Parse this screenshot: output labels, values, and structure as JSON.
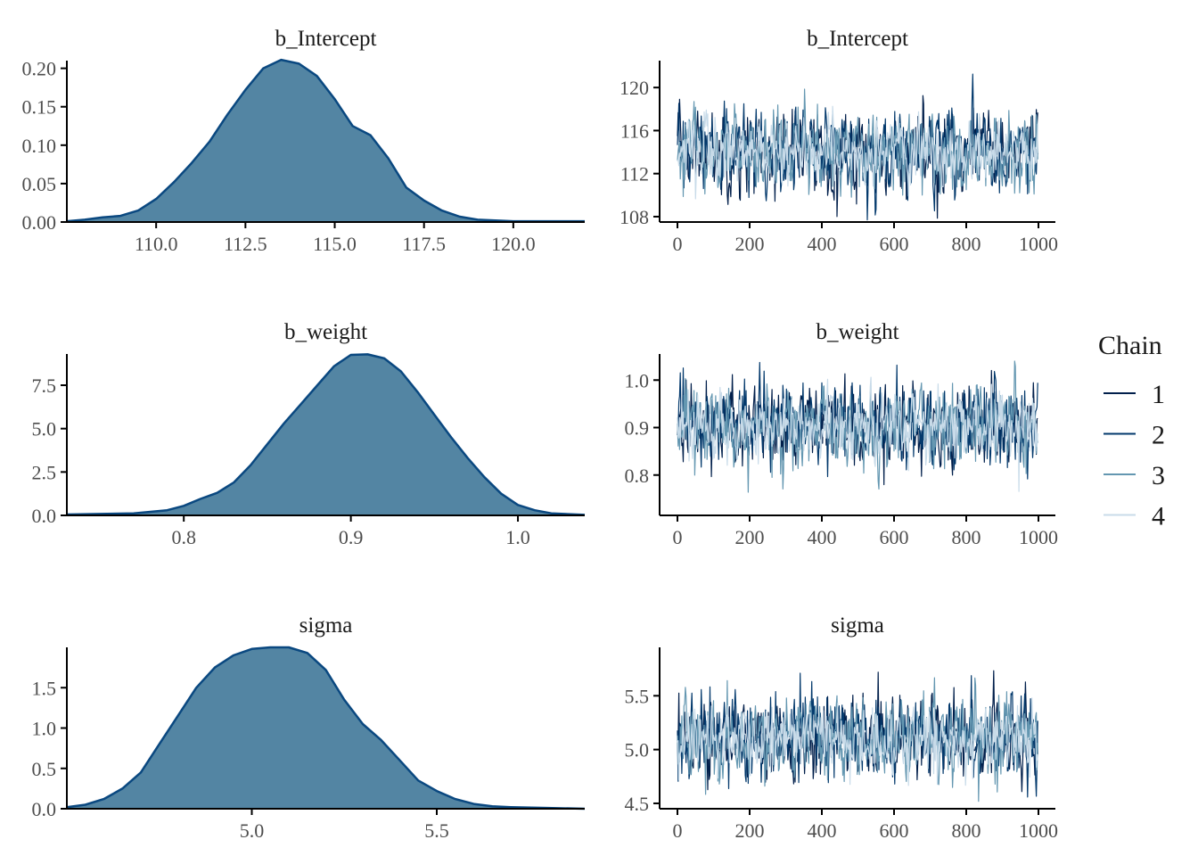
{
  "chart_data": [
    {
      "type": "area",
      "title": "b_Intercept",
      "xlim": [
        107.5,
        122.0
      ],
      "ylim": [
        0,
        0.21
      ],
      "xticks": [
        110.0,
        112.5,
        115.0,
        117.5,
        120.0
      ],
      "xtick_labels": [
        "110.0",
        "112.5",
        "115.0",
        "117.5",
        "120.0"
      ],
      "yticks": [
        0,
        0.05,
        0.1,
        0.15,
        0.2
      ],
      "ytick_labels": [
        "0.00",
        "0.05",
        "0.10",
        "0.15",
        "0.20"
      ],
      "x": [
        107.5,
        108.0,
        108.5,
        109.0,
        109.5,
        110.0,
        110.5,
        111.0,
        111.5,
        112.0,
        112.5,
        113.0,
        113.5,
        114.0,
        114.5,
        115.0,
        115.5,
        116.0,
        116.5,
        117.0,
        117.5,
        118.0,
        118.5,
        119.0,
        119.5,
        120.0,
        121.0,
        122.0
      ],
      "y": [
        0.001,
        0.003,
        0.006,
        0.008,
        0.015,
        0.03,
        0.052,
        0.077,
        0.105,
        0.14,
        0.172,
        0.2,
        0.211,
        0.206,
        0.19,
        0.16,
        0.125,
        0.113,
        0.083,
        0.045,
        0.028,
        0.015,
        0.007,
        0.003,
        0.002,
        0.001,
        0.001,
        0.001
      ]
    },
    {
      "type": "line",
      "title": "b_Intercept",
      "xlim": [
        0,
        1000
      ],
      "ylim": [
        107.5,
        122.5
      ],
      "xticks": [
        0,
        200,
        400,
        600,
        800,
        1000
      ],
      "xtick_labels": [
        "0",
        "200",
        "400",
        "600",
        "800",
        "1000"
      ],
      "yticks": [
        108,
        112,
        116,
        120
      ],
      "ytick_labels": [
        "108",
        "112",
        "116",
        "120"
      ],
      "trace": {
        "mean": 114.1,
        "sd": 1.9,
        "min": 107.7,
        "max": 121.9,
        "iterations": 1000,
        "chains": 4
      }
    },
    {
      "type": "area",
      "title": "b_weight",
      "xlim": [
        0.73,
        1.04
      ],
      "ylim": [
        0,
        9.3
      ],
      "xticks": [
        0.8,
        0.9,
        1.0
      ],
      "xtick_labels": [
        "0.8",
        "0.9",
        "1.0"
      ],
      "yticks": [
        0,
        2.5,
        5,
        7.5
      ],
      "ytick_labels": [
        "0.0",
        "2.5",
        "5.0",
        "7.5"
      ],
      "x": [
        0.73,
        0.75,
        0.77,
        0.79,
        0.8,
        0.81,
        0.82,
        0.83,
        0.84,
        0.85,
        0.86,
        0.87,
        0.88,
        0.89,
        0.9,
        0.91,
        0.92,
        0.93,
        0.94,
        0.95,
        0.96,
        0.97,
        0.98,
        0.99,
        1.0,
        1.01,
        1.02,
        1.04
      ],
      "y": [
        0.05,
        0.08,
        0.12,
        0.3,
        0.55,
        0.95,
        1.3,
        1.9,
        2.9,
        4.1,
        5.3,
        6.4,
        7.5,
        8.6,
        9.25,
        9.28,
        9.05,
        8.3,
        7.1,
        5.8,
        4.5,
        3.3,
        2.2,
        1.25,
        0.6,
        0.3,
        0.12,
        0.03
      ]
    },
    {
      "type": "line",
      "title": "b_weight",
      "xlim": [
        0,
        1000
      ],
      "ylim": [
        0.715,
        1.055
      ],
      "xticks": [
        0,
        200,
        400,
        600,
        800,
        1000
      ],
      "xtick_labels": [
        "0",
        "200",
        "400",
        "600",
        "800",
        "1000"
      ],
      "yticks": [
        0.8,
        0.9,
        1.0
      ],
      "ytick_labels": [
        "0.8",
        "0.9",
        "1.0"
      ],
      "trace": {
        "mean": 0.905,
        "sd": 0.043,
        "min": 0.73,
        "max": 1.04,
        "iterations": 1000,
        "chains": 4
      }
    },
    {
      "type": "area",
      "title": "sigma",
      "xlim": [
        4.5,
        5.9
      ],
      "ylim": [
        0,
        2.0
      ],
      "xticks": [
        5.0,
        5.5
      ],
      "xtick_labels": [
        "5.0",
        "5.5"
      ],
      "yticks": [
        0,
        0.5,
        1,
        1.5
      ],
      "ytick_labels": [
        "0.0",
        "0.5",
        "1.0",
        "1.5"
      ],
      "x": [
        4.5,
        4.55,
        4.6,
        4.65,
        4.7,
        4.75,
        4.8,
        4.85,
        4.9,
        4.95,
        5.0,
        5.05,
        5.1,
        5.15,
        5.2,
        5.25,
        5.3,
        5.35,
        5.4,
        5.45,
        5.5,
        5.55,
        5.6,
        5.65,
        5.7,
        5.8,
        5.9
      ],
      "y": [
        0.02,
        0.05,
        0.12,
        0.25,
        0.45,
        0.8,
        1.15,
        1.5,
        1.75,
        1.9,
        1.98,
        2.0,
        2.0,
        1.93,
        1.72,
        1.35,
        1.05,
        0.85,
        0.6,
        0.35,
        0.22,
        0.12,
        0.06,
        0.03,
        0.02,
        0.01,
        0.0
      ]
    },
    {
      "type": "line",
      "title": "sigma",
      "xlim": [
        0,
        1000
      ],
      "ylim": [
        4.45,
        5.95
      ],
      "xticks": [
        0,
        200,
        400,
        600,
        800,
        1000
      ],
      "xtick_labels": [
        "0",
        "200",
        "400",
        "600",
        "800",
        "1000"
      ],
      "yticks": [
        4.5,
        5.0,
        5.5
      ],
      "ytick_labels": [
        "4.5",
        "5.0",
        "5.5"
      ],
      "trace": {
        "mean": 5.1,
        "sd": 0.19,
        "min": 4.52,
        "max": 5.9,
        "iterations": 1000,
        "chains": 4
      }
    }
  ],
  "legend": {
    "title": "Chain",
    "items": [
      {
        "label": "1",
        "color": "#011f4b"
      },
      {
        "label": "2",
        "color": "#03396c"
      },
      {
        "label": "3",
        "color": "#6497b1"
      },
      {
        "label": "4",
        "color": "#c8dbe9"
      }
    ]
  },
  "colors": {
    "density_fill": "#5385a3",
    "density_line": "#0a4880",
    "axis": "#000000"
  }
}
